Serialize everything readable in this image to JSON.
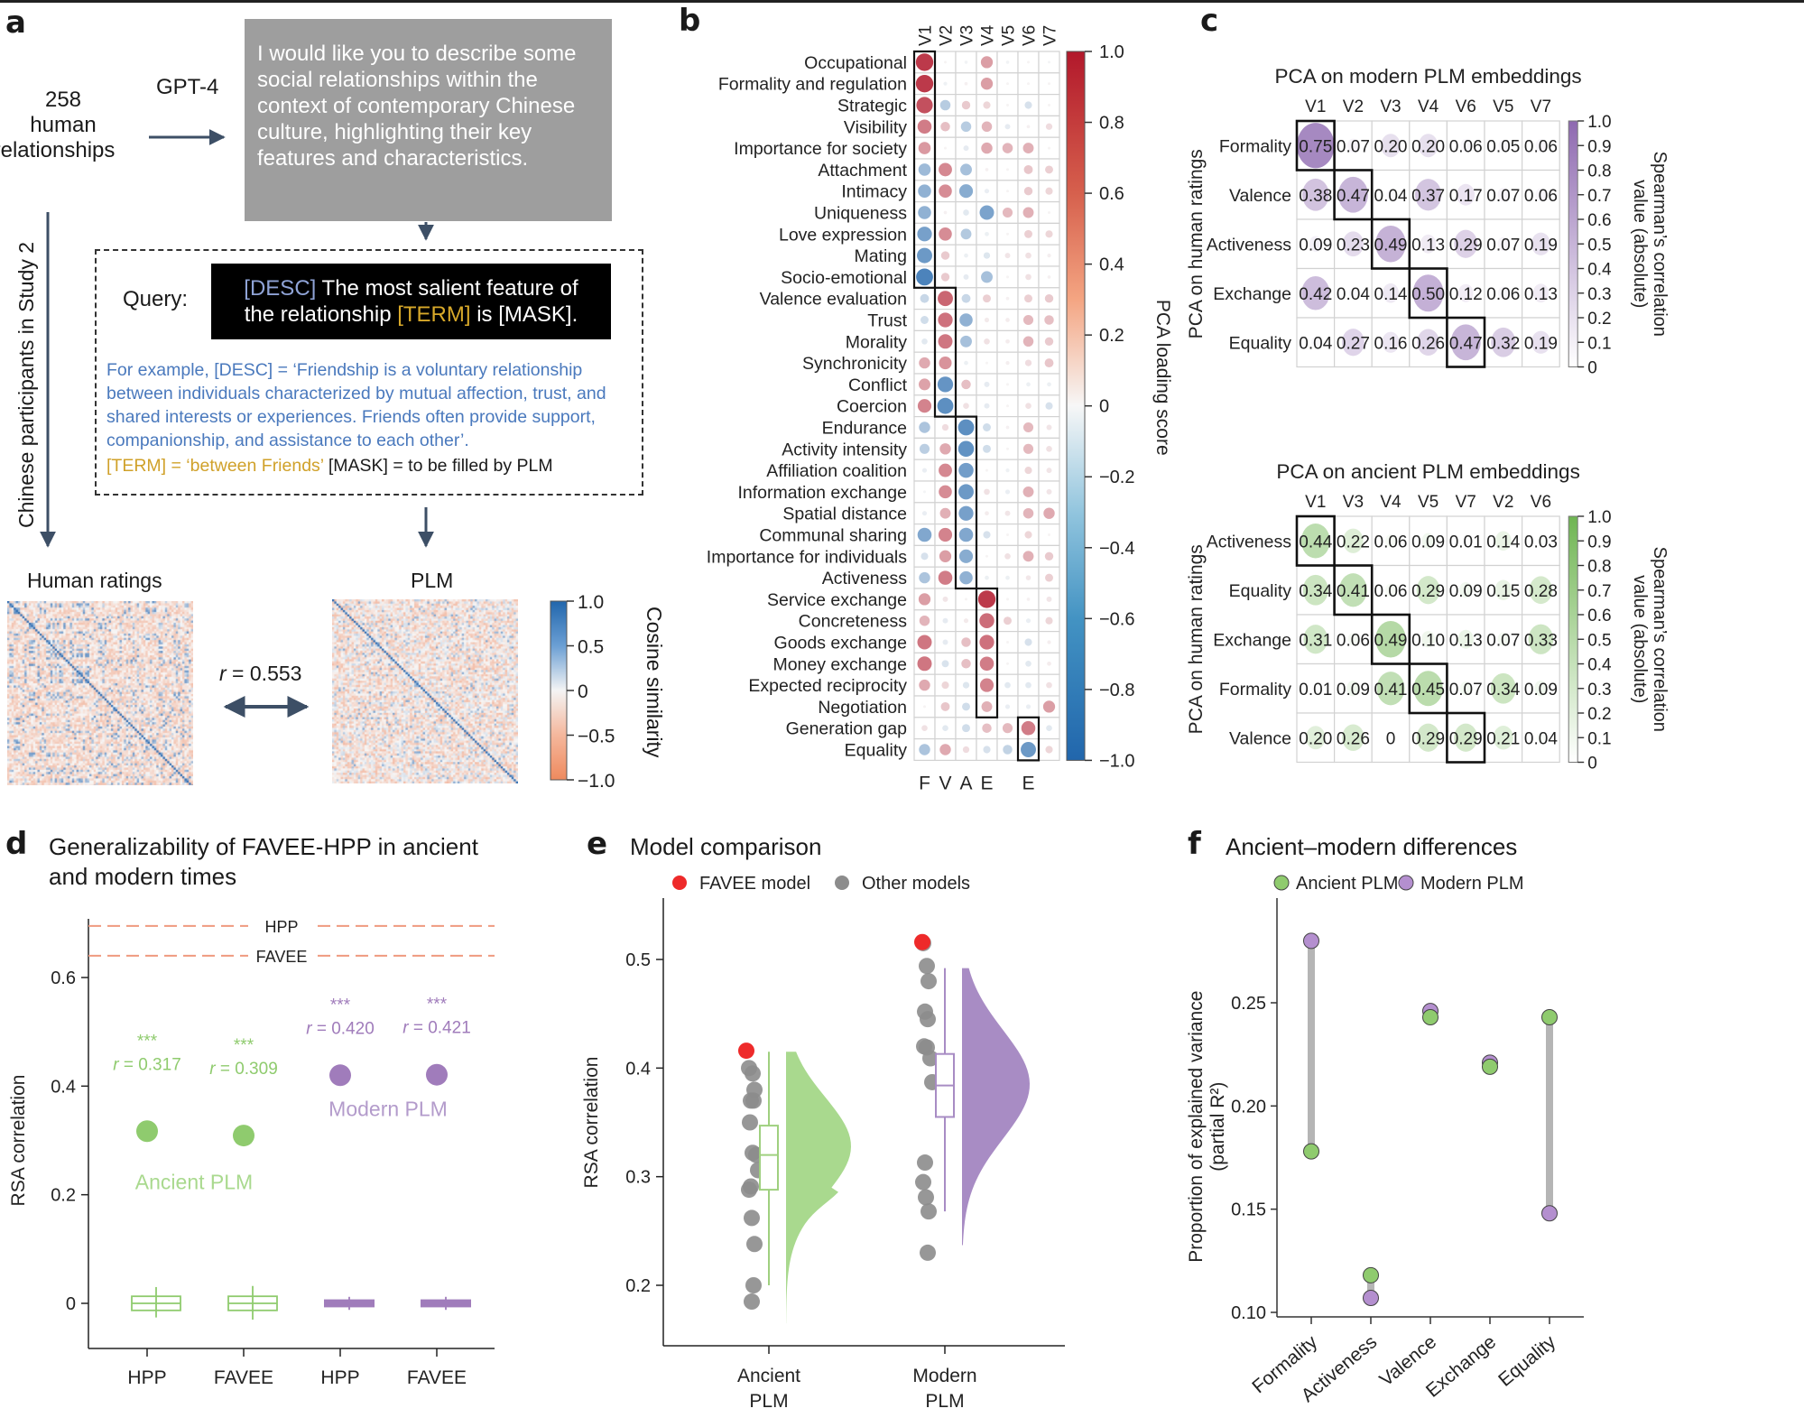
{
  "panels": {
    "a": {
      "letter": "a",
      "source_count": "258",
      "source_line1": "human",
      "source_line2": "relationships",
      "gpt_label": "GPT-4",
      "prompt_text": "I would like you to describe some social relationships within the context of contemporary Chinese culture, highlighting their key features and characteristics.",
      "query_label": "Query:",
      "query_desc_tag": "[DESC]",
      "query_part1": " The most salient feature of the relationship ",
      "query_term_tag": "[TERM]",
      "query_part2": " is [MASK].",
      "example_text": "For example, [DESC] = ‘Friendship is a voluntary relationship between individuals characterized by mutual affection, trust, and shared interests or experiences. Friends often provide support, companionship, and assistance to each other’.",
      "example_term": "[TERM] = ‘between Friends’",
      "example_mask": " [MASK] = to be filled by PLM",
      "participants_label": "Chinese participants in Study 2",
      "human_title": "Human ratings",
      "plm_title": "PLM",
      "r_label_italic": "r",
      "r_label_rest": " = 0.553",
      "colorbar_title": "Cosine similarity",
      "colorbar_ticks": [
        "1.0",
        "0.5",
        "0",
        "−0.5",
        "−1.0"
      ],
      "colors": {
        "positive": "#2f6db3",
        "negative": "#ef8a62",
        "arrow": "#3d4f66"
      }
    },
    "b": {
      "letter": "b"
    },
    "c": {
      "letter": "c"
    },
    "d": {
      "letter": "d",
      "title": "Generalizability of FAVEE-HPP in ancient and modern times"
    },
    "e": {
      "letter": "e",
      "title": "Model comparison"
    },
    "f": {
      "letter": "f",
      "title": "Ancient–modern differences"
    }
  },
  "chart_data": [
    {
      "id": "b",
      "type": "heatmap",
      "title": "",
      "columns": [
        "V1",
        "V2",
        "V3",
        "V4",
        "V5",
        "V6",
        "V7"
      ],
      "bottom_labels": [
        "F",
        "V",
        "A",
        "E",
        "",
        "E",
        ""
      ],
      "rows": [
        "Occupational",
        "Formality and regulation",
        "Strategic",
        "Visibility",
        "Importance for society",
        "Attachment",
        "Intimacy",
        "Uniqueness",
        "Love expression",
        "Mating",
        "Socio-emotional",
        "Valence evaluation",
        "Trust",
        "Morality",
        "Synchronicity",
        "Conflict",
        "Coercion",
        "Endurance",
        "Activity intensity",
        "Affiliation coalition",
        "Information exchange",
        "Spatial distance",
        "Communal sharing",
        "Importance for individuals",
        "Activeness",
        "Service exchange",
        "Concreteness",
        "Goods exchange",
        "Money exchange",
        "Expected reciprocity",
        "Negotiation",
        "Generation gap",
        "Equality"
      ],
      "values": [
        [
          0.85,
          0.02,
          -0.03,
          0.4,
          -0.03,
          0.02,
          -0.02
        ],
        [
          0.85,
          -0.04,
          0.03,
          0.4,
          0.02,
          0.02,
          0.02
        ],
        [
          0.75,
          -0.3,
          0.2,
          0.15,
          0.02,
          -0.15,
          0.02
        ],
        [
          0.55,
          0.25,
          -0.3,
          0.3,
          -0.08,
          0.03,
          0.12
        ],
        [
          0.42,
          0.02,
          -0.08,
          0.35,
          0.3,
          0.32,
          0.02
        ],
        [
          -0.42,
          0.5,
          -0.38,
          0.03,
          0.02,
          0.22,
          0.18
        ],
        [
          -0.48,
          0.48,
          -0.52,
          -0.06,
          0.02,
          0.2,
          0.15
        ],
        [
          -0.48,
          0.03,
          -0.1,
          -0.58,
          0.28,
          0.32,
          0.02
        ],
        [
          -0.6,
          0.48,
          -0.32,
          -0.05,
          0.02,
          0.18,
          0.15
        ],
        [
          -0.65,
          0.2,
          -0.05,
          -0.12,
          0.08,
          0.1,
          0.04
        ],
        [
          -0.8,
          0.2,
          -0.08,
          -0.38,
          0.02,
          0.1,
          0.03
        ],
        [
          -0.22,
          0.65,
          -0.22,
          0.18,
          0.03,
          0.18,
          0.2
        ],
        [
          -0.18,
          0.6,
          -0.48,
          0.06,
          0.05,
          0.28,
          0.25
        ],
        [
          -0.1,
          0.58,
          -0.38,
          0.1,
          0.05,
          0.3,
          0.2
        ],
        [
          0.35,
          0.45,
          -0.05,
          0.02,
          0.04,
          0.12,
          0.22
        ],
        [
          0.38,
          -0.68,
          0.25,
          -0.08,
          0.02,
          -0.05,
          -0.05
        ],
        [
          0.52,
          -0.72,
          0.1,
          -0.08,
          0.02,
          0.1,
          -0.15
        ],
        [
          -0.35,
          0.12,
          -0.72,
          -0.18,
          0.03,
          0.28,
          0.08
        ],
        [
          -0.28,
          0.35,
          -0.7,
          -0.18,
          0.02,
          0.28,
          0.1
        ],
        [
          -0.06,
          0.5,
          -0.62,
          0.02,
          -0.04,
          0.15,
          0.08
        ],
        [
          -0.02,
          0.48,
          -0.65,
          0.1,
          -0.06,
          0.32,
          0.08
        ],
        [
          -0.06,
          0.32,
          -0.6,
          0.05,
          0.08,
          0.3,
          0.35
        ],
        [
          -0.55,
          0.52,
          -0.55,
          -0.15,
          0.02,
          0.15,
          0.02
        ],
        [
          -0.15,
          0.4,
          -0.52,
          0.02,
          0.1,
          0.32,
          0.2
        ],
        [
          -0.35,
          0.55,
          -0.48,
          -0.05,
          -0.05,
          0.07,
          0.18
        ],
        [
          0.4,
          0.08,
          0.02,
          0.85,
          0.02,
          0.03,
          0.08
        ],
        [
          0.3,
          -0.08,
          0.06,
          0.62,
          0.18,
          -0.06,
          0.15
        ],
        [
          0.58,
          -0.08,
          0.25,
          0.6,
          0.02,
          -0.15,
          0.04
        ],
        [
          0.58,
          -0.14,
          0.25,
          0.55,
          0.02,
          -0.1,
          0.05
        ],
        [
          0.35,
          0.15,
          -0.12,
          0.52,
          -0.1,
          -0.1,
          0.1
        ],
        [
          0.02,
          0.22,
          -0.18,
          0.32,
          -0.06,
          -0.06,
          0.4
        ],
        [
          0.1,
          -0.1,
          -0.18,
          0.25,
          0.28,
          0.55,
          -0.1
        ],
        [
          -0.35,
          0.35,
          0.12,
          -0.15,
          -0.25,
          -0.65,
          0.15
        ]
      ],
      "boxes": [
        {
          "col": "V1",
          "rows": [
            "Occupational",
            "Socio-emotional"
          ]
        },
        {
          "col": "V2",
          "rows": [
            "Valence evaluation",
            "Coercion"
          ]
        },
        {
          "col": "V3",
          "rows": [
            "Endurance",
            "Activeness"
          ]
        },
        {
          "col": "V4",
          "rows": [
            "Service exchange",
            "Negotiation"
          ]
        },
        {
          "col": "V6",
          "rows": [
            "Generation gap",
            "Equality"
          ]
        }
      ],
      "colorbar": {
        "title": "PCA loading score",
        "range": [
          -1.0,
          1.0
        ],
        "ticks": [
          "1.0",
          "0.8",
          "0.6",
          "0.4",
          "0.2",
          "0",
          "−0.2",
          "−0.4",
          "−0.6",
          "−0.8",
          "−1.0"
        ],
        "negative_color": "#2166ac",
        "positive_color": "#b2182b"
      }
    },
    {
      "id": "c-top",
      "type": "heatmap",
      "title": "PCA on modern PLM embeddings",
      "ylabel": "PCA on human ratings",
      "columns": [
        "V1",
        "V2",
        "V3",
        "V4",
        "V6",
        "V5",
        "V7"
      ],
      "rows": [
        "Formality",
        "Valence",
        "Activeness",
        "Exchange",
        "Equality"
      ],
      "values": [
        [
          "0.75",
          "0.07",
          "0.20",
          "0.20",
          "0.06",
          "0.05",
          "0.06"
        ],
        [
          "0.38",
          "0.47",
          "0.04",
          "0.37",
          "0.17",
          "0.07",
          "0.06"
        ],
        [
          "0.09",
          "0.23",
          "0.49",
          "0.13",
          "0.29",
          "0.07",
          "0.19"
        ],
        [
          "0.42",
          "0.04",
          "0.14",
          "0.50",
          "0.12",
          "0.06",
          "0.13"
        ],
        [
          "0.04",
          "0.27",
          "0.16",
          "0.26",
          "0.47",
          "0.32",
          "0.19"
        ]
      ],
      "diagonal_boxes": [
        [
          0,
          0
        ],
        [
          1,
          1
        ],
        [
          2,
          2
        ],
        [
          3,
          3
        ],
        [
          4,
          4
        ]
      ],
      "colorbar": {
        "title_line1": "Spearman’s correlation",
        "title_line2": "value (absolute)",
        "range": [
          0,
          1
        ],
        "ticks": [
          "1.0",
          "0.9",
          "0.8",
          "0.7",
          "0.6",
          "0.5",
          "0.4",
          "0.3",
          "0.2",
          "0.1",
          "0"
        ],
        "color": "#8e69b0"
      }
    },
    {
      "id": "c-bottom",
      "type": "heatmap",
      "title": "PCA on ancient PLM embeddings",
      "ylabel": "PCA on human ratings",
      "columns": [
        "V1",
        "V3",
        "V4",
        "V5",
        "V7",
        "V2",
        "V6"
      ],
      "rows": [
        "Activeness",
        "Equality",
        "Exchange",
        "Formality",
        "Valence"
      ],
      "values": [
        [
          "0.44",
          "0.22",
          "0.06",
          "0.09",
          "0.01",
          "0.14",
          "0.03"
        ],
        [
          "0.34",
          "0.41",
          "0.06",
          "0.29",
          "0.09",
          "0.15",
          "0.28"
        ],
        [
          "0.31",
          "0.06",
          "0.49",
          "0.10",
          "0.13",
          "0.07",
          "0.33"
        ],
        [
          "0.01",
          "0.09",
          "0.41",
          "0.45",
          "0.07",
          "0.34",
          "0.09"
        ],
        [
          "0.20",
          "0.26",
          "0",
          "0.29",
          "0.29",
          "0.21",
          "0.04"
        ]
      ],
      "diagonal_boxes": [
        [
          0,
          0
        ],
        [
          1,
          1
        ],
        [
          2,
          2
        ],
        [
          3,
          3
        ],
        [
          4,
          4
        ]
      ],
      "colorbar": {
        "title_line1": "Spearman’s correlation",
        "title_line2": "value (absolute)",
        "range": [
          0,
          1
        ],
        "ticks": [
          "1.0",
          "0.9",
          "0.8",
          "0.7",
          "0.6",
          "0.5",
          "0.4",
          "0.3",
          "0.2",
          "0.1",
          "0"
        ],
        "color": "#6fb552"
      }
    },
    {
      "id": "d",
      "type": "scatter",
      "title": "Generalizability of FAVEE-HPP in ancient and modern times",
      "ylabel": "RSA correlation",
      "xlabel": "",
      "categories": [
        "HPP",
        "FAVEE",
        "HPP",
        "FAVEE"
      ],
      "ylim": [
        -0.07,
        0.72
      ],
      "yticks": [
        "0",
        "0.2",
        "0.4",
        "0.6"
      ],
      "reference_lines": [
        {
          "label": "HPP",
          "value": 0.695
        },
        {
          "label": "FAVEE",
          "value": 0.64
        }
      ],
      "series": [
        {
          "name": "Ancient PLM",
          "color": "#8fcb6e",
          "points": [
            {
              "x": "HPP",
              "y": 0.317,
              "label": "r = 0.317",
              "sig": "***"
            },
            {
              "x": "FAVEE",
              "y": 0.309,
              "label": "r = 0.309",
              "sig": "***"
            }
          ],
          "null_boxes": [
            {
              "median": 0.0,
              "q1": -0.008,
              "q3": 0.008,
              "min": -0.026,
              "max": 0.03
            },
            {
              "median": 0.0,
              "q1": -0.008,
              "q3": 0.008,
              "min": -0.03,
              "max": 0.032
            }
          ]
        },
        {
          "name": "Modern PLM",
          "color": "#a07cbb",
          "points": [
            {
              "x": "HPP",
              "y": 0.42,
              "label": "r = 0.420",
              "sig": "***"
            },
            {
              "x": "FAVEE",
              "y": 0.421,
              "label": "r = 0.421",
              "sig": "***"
            }
          ],
          "null_boxes": [
            {
              "median": 0.0,
              "q1": -0.004,
              "q3": 0.004,
              "min": -0.012,
              "max": 0.012
            },
            {
              "median": 0.0,
              "q1": -0.004,
              "q3": 0.004,
              "min": -0.012,
              "max": 0.012
            }
          ]
        }
      ],
      "reference_line_color": "#ef9a7f"
    },
    {
      "id": "e",
      "type": "scatter",
      "title": "Model comparison",
      "ylabel": "RSA correlation",
      "categories": [
        "Ancient PLM",
        "Modern PLM"
      ],
      "ylim": [
        0.155,
        0.535
      ],
      "yticks": [
        "0.2",
        "0.3",
        "0.4",
        "0.5"
      ],
      "legend": [
        {
          "name": "FAVEE model",
          "color": "#ee2a2a"
        },
        {
          "name": "Other models",
          "color": "#8c8c8c"
        }
      ],
      "series": [
        {
          "name": "Ancient PLM",
          "color": "#a9d98e",
          "favee": 0.416,
          "others": [
            0.4,
            0.395,
            0.38,
            0.37,
            0.37,
            0.35,
            0.322,
            0.32,
            0.306,
            0.291,
            0.288,
            0.262,
            0.238,
            0.2,
            0.185
          ],
          "box": {
            "median": 0.32,
            "q1": 0.288,
            "q3": 0.347,
            "min": 0.2,
            "max": 0.415
          },
          "density_range": [
            0.165,
            0.415
          ],
          "density_mode": 0.328
        },
        {
          "name": "Modern PLM",
          "color": "#a88cc4",
          "favee": 0.516,
          "others": [
            0.515,
            0.494,
            0.48,
            0.452,
            0.445,
            0.42,
            0.419,
            0.409,
            0.387,
            0.313,
            0.295,
            0.281,
            0.268,
            0.23
          ],
          "box": {
            "median": 0.384,
            "q1": 0.355,
            "q3": 0.413,
            "min": 0.268,
            "max": 0.492
          },
          "density_range": [
            0.237,
            0.492
          ],
          "density_mode": 0.385
        }
      ]
    },
    {
      "id": "f",
      "type": "scatter",
      "title": "Ancient–modern differences",
      "ylabel_line1": "Proportion of explained variance",
      "ylabel_line2": "(partial R²)",
      "categories": [
        "Formality",
        "Activeness",
        "Valence",
        "Exchange",
        "Equality"
      ],
      "ylim": [
        0.098,
        0.285
      ],
      "yticks": [
        "0.10",
        "0.15",
        "0.20",
        "0.25"
      ],
      "legend": [
        {
          "name": "Ancient PLM",
          "color": "#8fcb6e"
        },
        {
          "name": "Modern PLM",
          "color": "#b48fcf"
        }
      ],
      "series": [
        {
          "name": "Ancient PLM",
          "color": "#8fcb6e",
          "values": [
            0.178,
            0.118,
            0.243,
            0.219,
            0.243
          ]
        },
        {
          "name": "Modern PLM",
          "color": "#b48fcf",
          "values": [
            0.28,
            0.107,
            0.246,
            0.221,
            0.148
          ]
        }
      ]
    }
  ]
}
